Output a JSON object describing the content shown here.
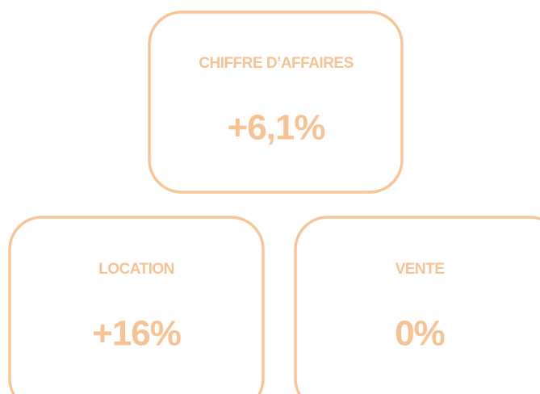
{
  "cards": [
    {
      "label": "CHIFFRE D’AFFAIRES",
      "value": "+6,1%"
    },
    {
      "label": "LOCATION",
      "value": "+16%"
    },
    {
      "label": "VENTE",
      "value": "0%"
    }
  ]
}
